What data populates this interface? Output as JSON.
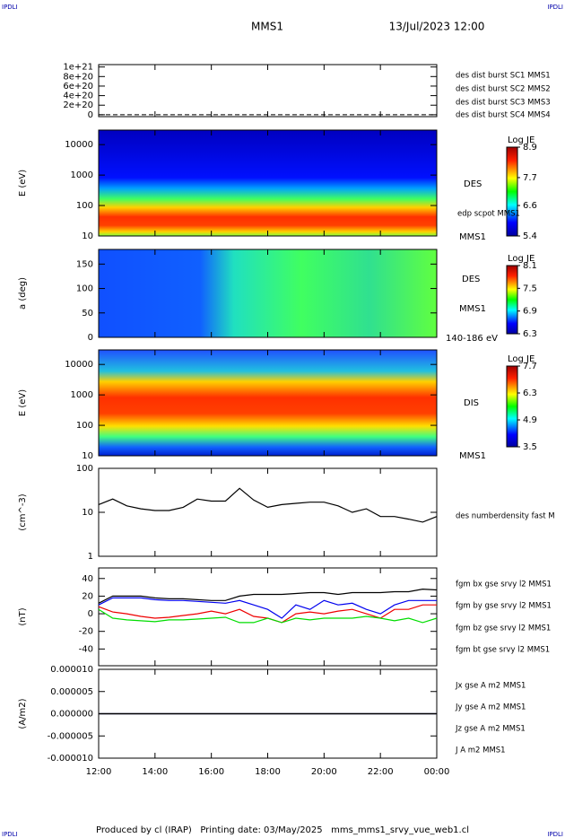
{
  "header": {
    "corner_tl": "IPDLI",
    "corner_tr": "IPDLI",
    "spacecraft": "MMS1",
    "datetime": "13/Jul/2023 12:00"
  },
  "footer": {
    "text": "Produced by cl (IRAP)   Printing date: 03/May/2025   mms_mms1_srvy_vue_web1.cl",
    "corner_bl": "IPDLI",
    "corner_br": "IPDLI"
  },
  "chart_data": [
    {
      "type": "legend",
      "ylim": [
        -4e+19,
        1.05e+21
      ],
      "yticks": [
        {
          "value": 1e+21,
          "label": "1e+21"
        },
        {
          "value": 8e+20,
          "label": "8e+20"
        },
        {
          "value": 6e+20,
          "label": "6e+20"
        },
        {
          "value": 4e+20,
          "label": "4e+20"
        },
        {
          "value": 2e+20,
          "label": "2e+20"
        },
        0
      ],
      "series": [
        {
          "name": "des dist burst SC1 MMS1",
          "color": "#0000cc"
        },
        {
          "name": "des dist burst SC2 MMS2",
          "color": "#cc00cc"
        },
        {
          "name": "des dist burst SC3 MMS3",
          "color": "#dd0000"
        },
        {
          "name": "des dist burst SC4 MMS4",
          "color": "#00bb00"
        }
      ]
    },
    {
      "type": "spectrogram",
      "ylabel": "E (eV)",
      "log_scale": true,
      "ylim": [
        10,
        30000
      ],
      "yticks": [
        10,
        100,
        1000,
        10000
      ],
      "colorbar_title": "Log JE",
      "clim": [
        5.4,
        8.9
      ],
      "cticks": [
        8.9,
        7.7,
        6.6,
        5.4
      ],
      "labels": [
        "DES",
        "edp scpot MMS1",
        "MMS1"
      ]
    },
    {
      "type": "spectrogram",
      "ylabel": "a (deg)",
      "ylim": [
        0,
        180
      ],
      "yticks": [
        0,
        50,
        100,
        150
      ],
      "colorbar_title": "Log JE",
      "clim": [
        6.3,
        8.1
      ],
      "cticks": [
        8.1,
        7.5,
        6.9,
        6.3
      ],
      "labels": [
        "DES",
        "MMS1",
        "140-186 eV"
      ]
    },
    {
      "type": "spectrogram",
      "ylabel": "E (eV)",
      "log_scale": true,
      "ylim": [
        10,
        30000
      ],
      "yticks": [
        10,
        100,
        1000,
        10000
      ],
      "colorbar_title": "Log JE",
      "clim": [
        3.5,
        7.7
      ],
      "cticks": [
        7.7,
        6.3,
        4.9,
        3.5
      ],
      "labels": [
        "DIS",
        "MMS1"
      ]
    },
    {
      "type": "line",
      "ylabel": "(cm^-3)",
      "log_scale": true,
      "ylim": [
        1,
        100
      ],
      "yticks": [
        1,
        10,
        100
      ],
      "series": [
        {
          "name": "des numberdensity fast M",
          "color": "#000000",
          "values": [
            15,
            20,
            14,
            12,
            11,
            11,
            13,
            20,
            18,
            18,
            35,
            19,
            13,
            15,
            16,
            17,
            17,
            14,
            10,
            12,
            8,
            8,
            7,
            6,
            8
          ]
        }
      ]
    },
    {
      "type": "line",
      "ylabel": "(nT)",
      "ylim": [
        -59,
        52
      ],
      "yticks": [
        40,
        20,
        0,
        -20,
        -40
      ],
      "series": [
        {
          "name": "fgm bx gse srvy l2 MMS1",
          "color": "#ee0000",
          "values": [
            8,
            2,
            0,
            -3,
            -5,
            -4,
            -2,
            0,
            3,
            0,
            5,
            -3,
            -5,
            -10,
            0,
            2,
            0,
            3,
            5,
            0,
            -5,
            5,
            5,
            10,
            10
          ]
        },
        {
          "name": "fgm by gse srvy l2 MMS1",
          "color": "#00dd00",
          "values": [
            5,
            -5,
            -7,
            -8,
            -9,
            -7,
            -7,
            -6,
            -5,
            -4,
            -10,
            -10,
            -5,
            -10,
            -5,
            -7,
            -5,
            -5,
            -5,
            -3,
            -5,
            -8,
            -5,
            -10,
            -5
          ]
        },
        {
          "name": "fgm bz gse srvy l2 MMS1",
          "color": "#0000ee",
          "values": [
            10,
            18,
            18,
            18,
            16,
            15,
            15,
            14,
            13,
            12,
            15,
            10,
            5,
            -5,
            10,
            5,
            15,
            10,
            12,
            5,
            0,
            10,
            15,
            15,
            15
          ]
        },
        {
          "name": "fgm bt gse srvy l2 MMS1",
          "color": "#000000",
          "values": [
            12,
            20,
            20,
            20,
            18,
            17,
            17,
            16,
            15,
            15,
            20,
            22,
            22,
            22,
            23,
            24,
            24,
            22,
            24,
            24,
            24,
            25,
            25,
            28,
            27
          ]
        }
      ]
    },
    {
      "type": "line",
      "ylabel": "(A/m2)",
      "ylim": [
        -1e-05,
        1e-05
      ],
      "yticks": [
        {
          "value": 1e-05,
          "label": "0.000010"
        },
        {
          "value": 5e-06,
          "label": "0.000005"
        },
        {
          "value": 0,
          "label": "0.000000"
        },
        {
          "value": -5e-06,
          "label": "-0.000005"
        },
        {
          "value": -1e-05,
          "label": "-0.000010"
        }
      ],
      "x": [
        "12:00",
        "12:30",
        "13:00",
        "13:30",
        "14:00",
        "14:30",
        "15:00",
        "15:30",
        "16:00",
        "16:30",
        "17:00",
        "17:30",
        "18:00",
        "18:30",
        "19:00",
        "19:30",
        "20:00",
        "20:30",
        "21:00",
        "21:30",
        "22:00",
        "22:30",
        "23:00",
        "23:30",
        "00:00"
      ],
      "series": [
        {
          "name": "Jx gse A m2 MMS1",
          "color": "#ee0000",
          "values": [
            0,
            0,
            0,
            0,
            0,
            0,
            0,
            0,
            0,
            0,
            0,
            0,
            0,
            0,
            0,
            0,
            0,
            0,
            0,
            0,
            0,
            0,
            0,
            0,
            0
          ]
        },
        {
          "name": "Jy gse A m2 MMS1",
          "color": "#00bb00",
          "values": [
            0,
            0,
            0,
            0,
            0,
            0,
            0,
            0,
            0,
            0,
            0,
            0,
            0,
            0,
            0,
            0,
            0,
            0,
            0,
            0,
            0,
            0,
            0,
            0,
            0
          ]
        },
        {
          "name": "Jz gse A m2 MMS1",
          "color": "#0000ee",
          "values": [
            0,
            0,
            0,
            0,
            0,
            0,
            0,
            0,
            0,
            0,
            0,
            0,
            0,
            0,
            0,
            0,
            0,
            0,
            0,
            0,
            0,
            0,
            0,
            0,
            0
          ]
        },
        {
          "name": "J A m2 MMS1",
          "color": "#000000",
          "values": [
            0,
            0,
            0,
            0,
            0,
            0,
            0,
            0,
            0,
            0,
            0,
            0,
            0,
            0,
            0,
            0,
            0,
            0,
            0,
            0,
            0,
            0,
            0,
            0,
            0
          ]
        }
      ]
    }
  ]
}
